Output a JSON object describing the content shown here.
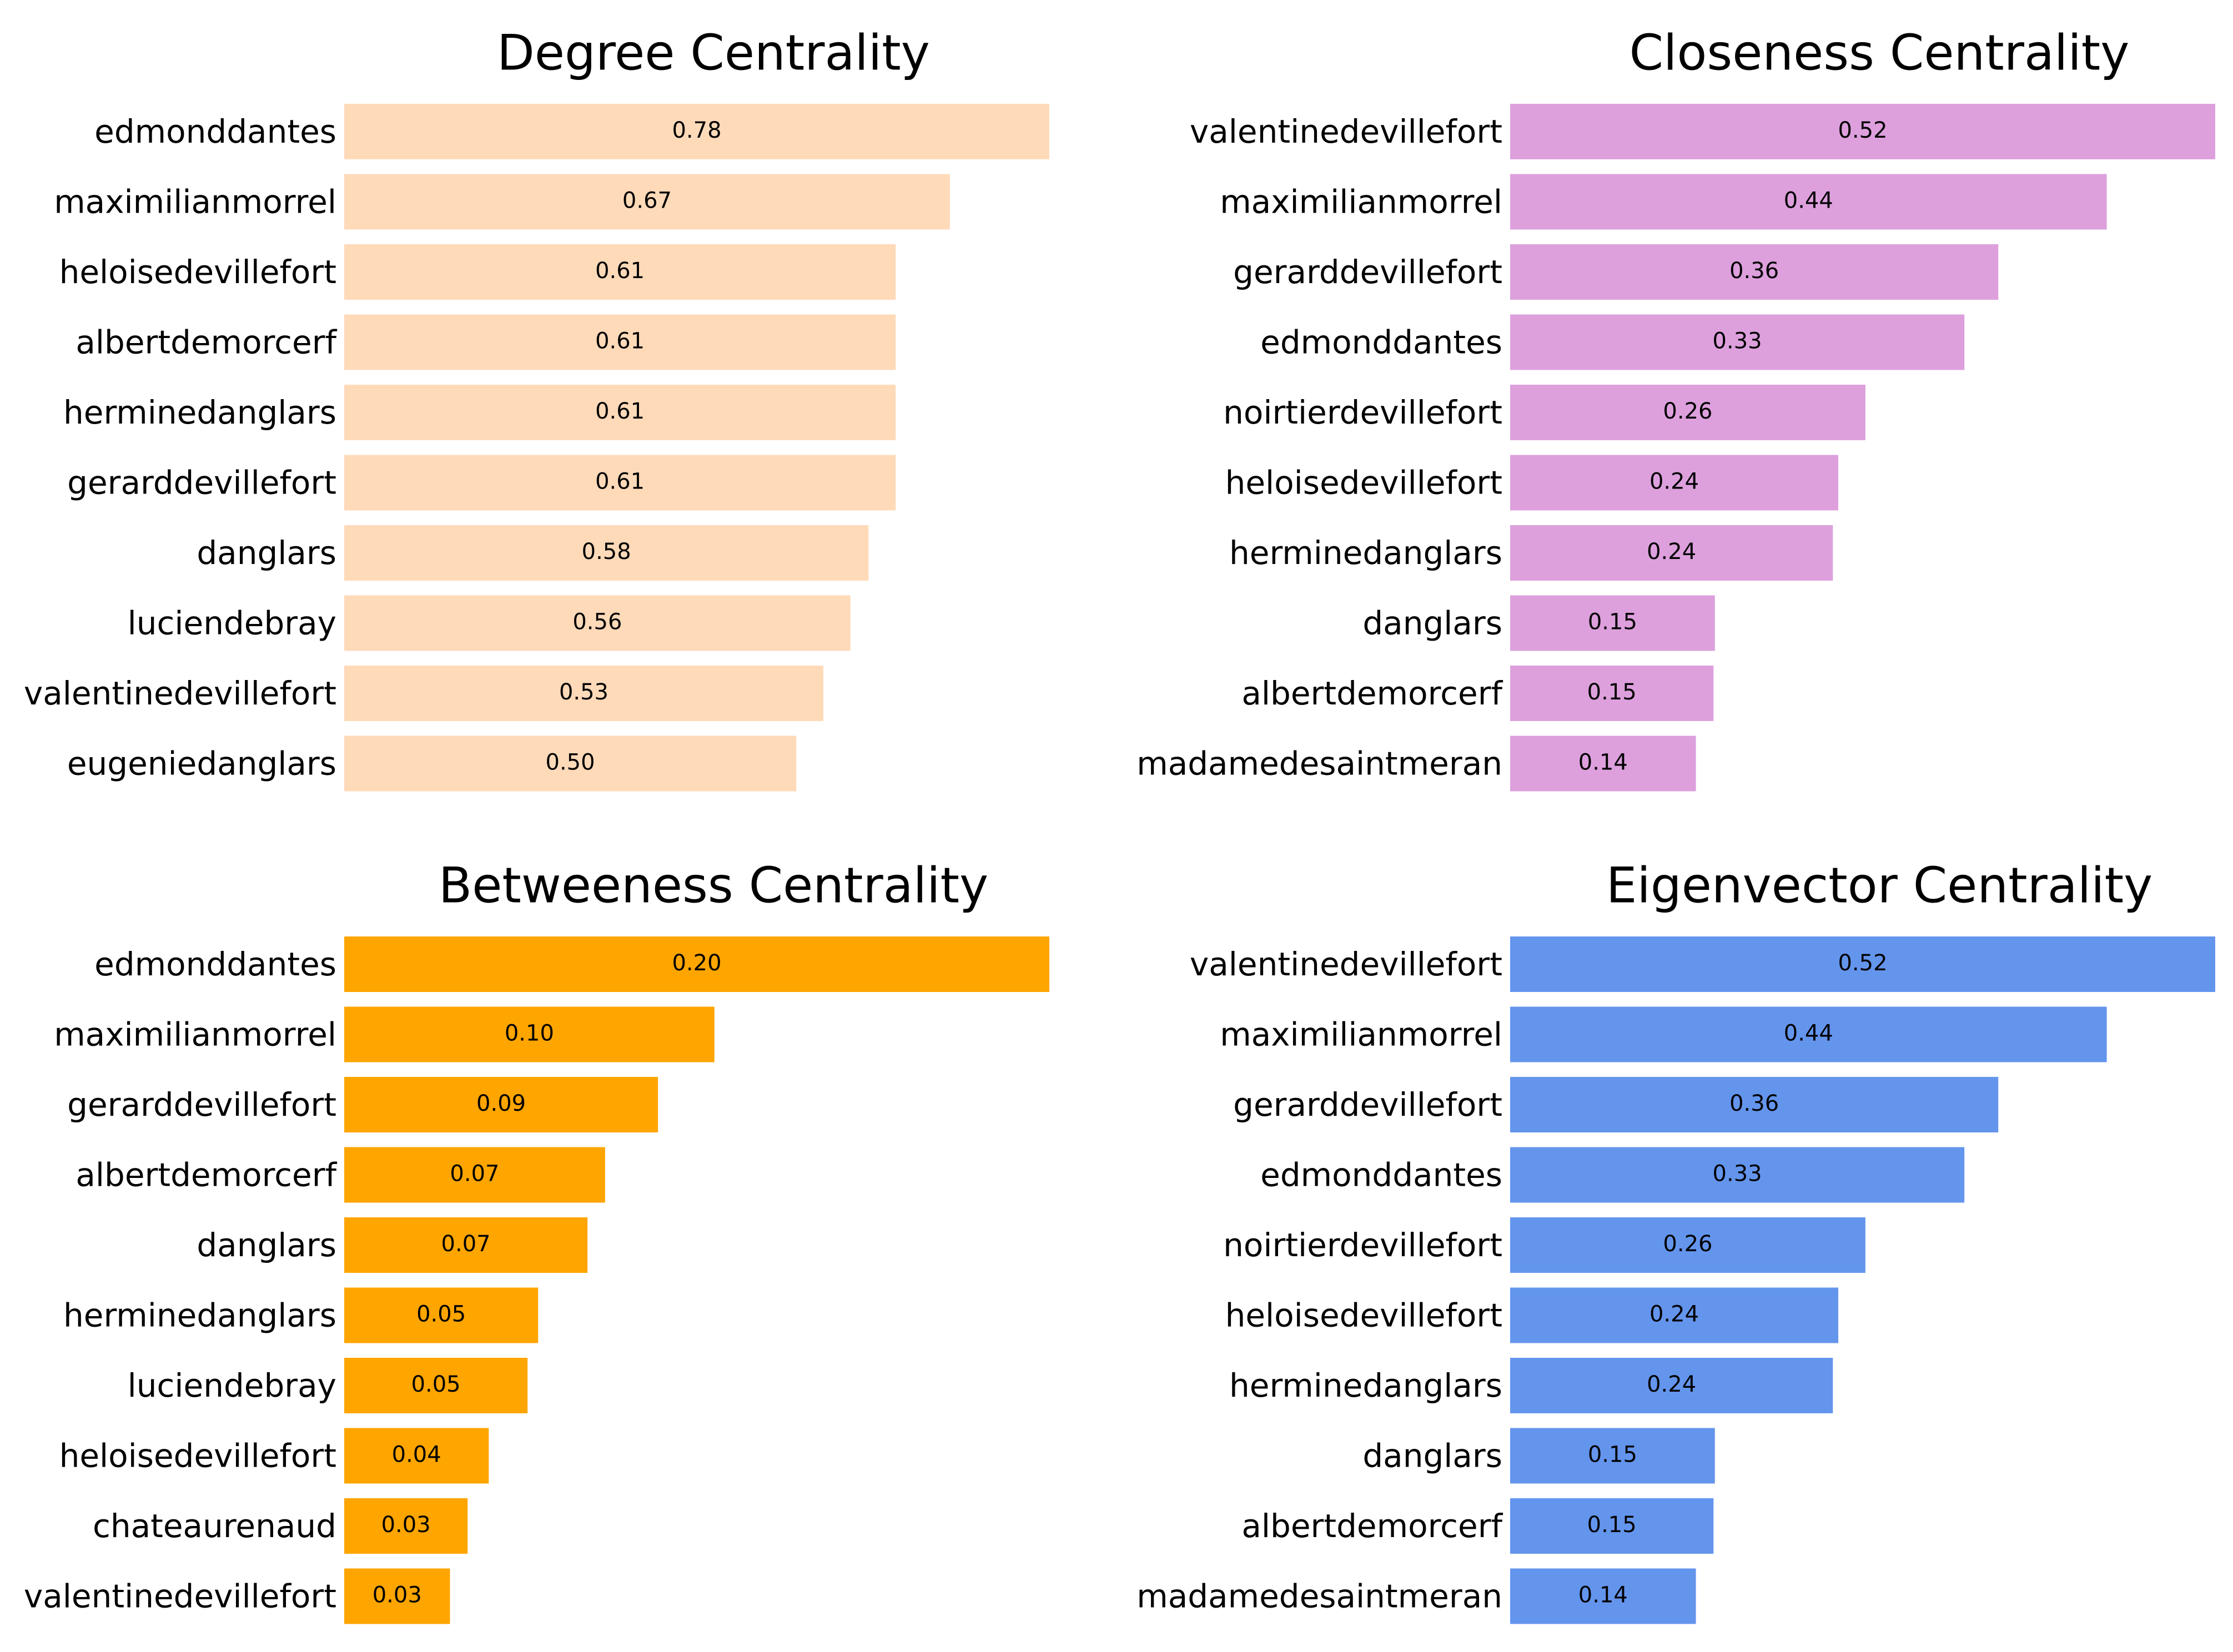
{
  "chart_data": [
    {
      "type": "bar",
      "orientation": "horizontal",
      "title": "Degree Centrality",
      "color": "#FFDAB9",
      "categories": [
        "edmonddantes",
        "maximilianmorrel",
        "heloisedevillefort",
        "albertdemorcerf",
        "herminedanglars",
        "gerarddevillefort",
        "danglars",
        "luciendebray",
        "valentinedevillefort",
        "eugeniedanglars"
      ],
      "values": [
        0.78,
        0.67,
        0.61,
        0.61,
        0.61,
        0.61,
        0.58,
        0.56,
        0.53,
        0.5
      ],
      "value_labels": [
        "0.78",
        "0.67",
        "0.61",
        "0.61",
        "0.61",
        "0.61",
        "0.58",
        "0.56",
        "0.53",
        "0.50"
      ],
      "xlim": [
        0,
        0.78
      ],
      "grid": false,
      "axes_visible": false
    },
    {
      "type": "bar",
      "orientation": "horizontal",
      "title": "Closeness Centrality",
      "color": "#DDA0DD",
      "categories": [
        "valentinedevillefort",
        "maximilianmorrel",
        "gerarddevillefort",
        "edmonddantes",
        "noirtierdevillefort",
        "heloisedevillefort",
        "herminedanglars",
        "danglars",
        "albertdemorcerf",
        "madamedesaintmeran"
      ],
      "values": [
        0.52,
        0.44,
        0.36,
        0.335,
        0.262,
        0.242,
        0.238,
        0.151,
        0.15,
        0.137
      ],
      "value_labels": [
        "0.52",
        "0.44",
        "0.36",
        "0.33",
        "0.26",
        "0.24",
        "0.24",
        "0.15",
        "0.15",
        "0.14"
      ],
      "xlim": [
        0,
        0.52
      ],
      "grid": false,
      "axes_visible": false
    },
    {
      "type": "bar",
      "orientation": "horizontal",
      "title": "Betweeness Centrality",
      "color": "#FFA500",
      "categories": [
        "edmonddantes",
        "maximilianmorrel",
        "gerarddevillefort",
        "albertdemorcerf",
        "danglars",
        "herminedanglars",
        "luciendebray",
        "heloisedevillefort",
        "chateaurenaud",
        "valentinedevillefort"
      ],
      "values": [
        0.2,
        0.105,
        0.089,
        0.074,
        0.069,
        0.055,
        0.052,
        0.041,
        0.035,
        0.03
      ],
      "value_labels": [
        "0.20",
        "0.10",
        "0.09",
        "0.07",
        "0.07",
        "0.05",
        "0.05",
        "0.04",
        "0.03",
        "0.03"
      ],
      "xlim": [
        0,
        0.2
      ],
      "grid": false,
      "axes_visible": false
    },
    {
      "type": "bar",
      "orientation": "horizontal",
      "title": "Eigenvector Centrality",
      "color": "#6495ED",
      "categories": [
        "valentinedevillefort",
        "maximilianmorrel",
        "gerarddevillefort",
        "edmonddantes",
        "noirtierdevillefort",
        "heloisedevillefort",
        "herminedanglars",
        "danglars",
        "albertdemorcerf",
        "madamedesaintmeran"
      ],
      "values": [
        0.52,
        0.44,
        0.36,
        0.335,
        0.262,
        0.242,
        0.238,
        0.151,
        0.15,
        0.137
      ],
      "value_labels": [
        "0.52",
        "0.44",
        "0.36",
        "0.33",
        "0.26",
        "0.24",
        "0.24",
        "0.15",
        "0.15",
        "0.14"
      ],
      "xlim": [
        0,
        0.52
      ],
      "grid": false,
      "axes_visible": false
    }
  ]
}
